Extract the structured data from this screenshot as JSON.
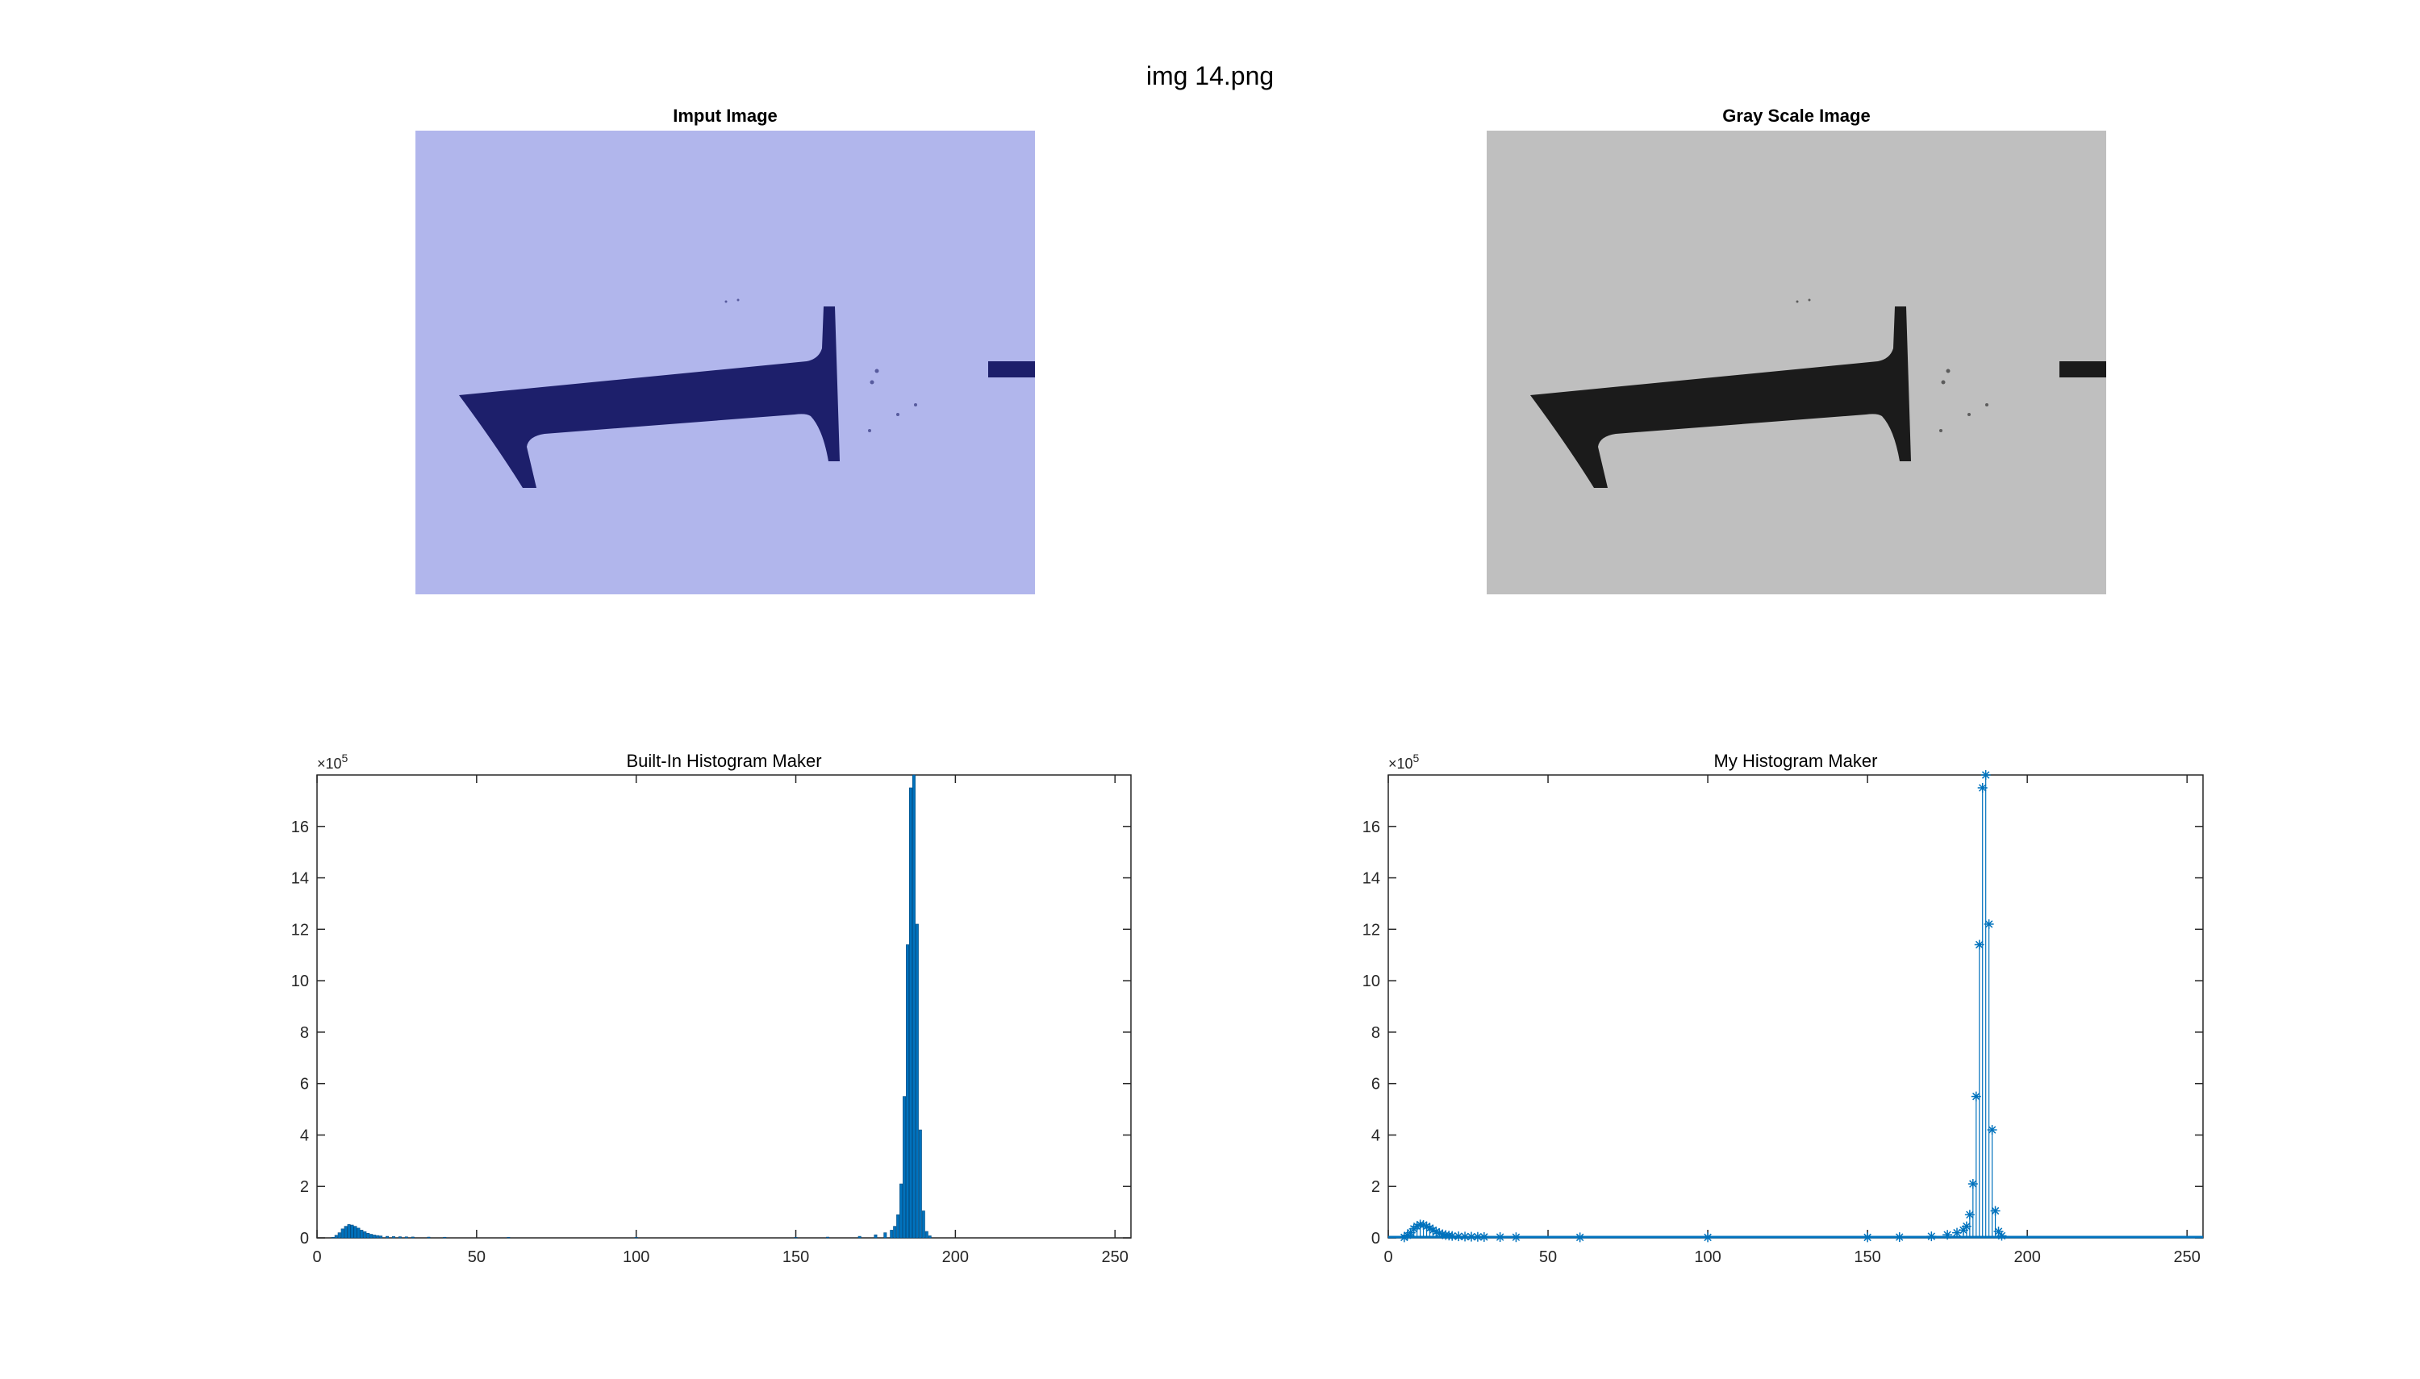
{
  "figure": {
    "suptitle": "img 14.png"
  },
  "images": [
    {
      "title": "Imput Image",
      "tint": "#b1b6ec",
      "glyph_color": "#1d1f6b"
    },
    {
      "title": "Gray Scale Image",
      "tint": "#bfbfbf",
      "glyph_color": "#1b1b1b"
    }
  ],
  "colors": {
    "bar": "#0072bd",
    "line": "#0072bd",
    "axis": "#262626",
    "text": "#262626"
  },
  "chart_data": [
    {
      "type": "bar",
      "title": "Built-In Histogram Maker",
      "xlim": [
        0,
        255
      ],
      "ylim": [
        0,
        1800000
      ],
      "exponent_label": "×10",
      "exponent_power": "5",
      "xticks": [
        0,
        50,
        100,
        150,
        200,
        250
      ],
      "yticks": [
        0,
        2,
        4,
        6,
        8,
        10,
        12,
        14,
        16
      ],
      "x": [
        5,
        6,
        7,
        8,
        9,
        10,
        11,
        12,
        13,
        14,
        15,
        16,
        17,
        18,
        19,
        20,
        22,
        24,
        26,
        28,
        30,
        35,
        40,
        60,
        100,
        150,
        160,
        170,
        175,
        178,
        180,
        181,
        182,
        183,
        184,
        185,
        186,
        187,
        188,
        189,
        190,
        191,
        192
      ],
      "values": [
        2000,
        10000,
        20000,
        35000,
        45000,
        52000,
        50000,
        45000,
        38000,
        30000,
        24000,
        18000,
        14000,
        11000,
        9000,
        7500,
        6000,
        5000,
        4500,
        4000,
        3500,
        3000,
        2500,
        2000,
        2000,
        2000,
        3000,
        6000,
        12000,
        20000,
        30000,
        45000,
        90000,
        210000,
        550000,
        1140000,
        1750000,
        1800000,
        1220000,
        420000,
        105000,
        25000,
        8000
      ]
    },
    {
      "type": "stem",
      "title": "My Histogram Maker",
      "xlim": [
        0,
        255
      ],
      "ylim": [
        0,
        1800000
      ],
      "exponent_label": "×10",
      "exponent_power": "5",
      "xticks": [
        0,
        50,
        100,
        150,
        200,
        250
      ],
      "yticks": [
        0,
        2,
        4,
        6,
        8,
        10,
        12,
        14,
        16
      ],
      "x": [
        5,
        6,
        7,
        8,
        9,
        10,
        11,
        12,
        13,
        14,
        15,
        16,
        17,
        18,
        19,
        20,
        22,
        24,
        26,
        28,
        30,
        35,
        40,
        60,
        100,
        150,
        160,
        170,
        175,
        178,
        180,
        181,
        182,
        183,
        184,
        185,
        186,
        187,
        188,
        189,
        190,
        191,
        192
      ],
      "values": [
        2000,
        10000,
        20000,
        35000,
        45000,
        52000,
        50000,
        45000,
        38000,
        30000,
        24000,
        18000,
        14000,
        11000,
        9000,
        7500,
        6000,
        5000,
        4500,
        4000,
        3500,
        3000,
        2500,
        2000,
        2000,
        2000,
        3000,
        6000,
        12000,
        20000,
        30000,
        45000,
        90000,
        210000,
        550000,
        1140000,
        1750000,
        1800000,
        1220000,
        420000,
        105000,
        25000,
        8000
      ]
    }
  ]
}
